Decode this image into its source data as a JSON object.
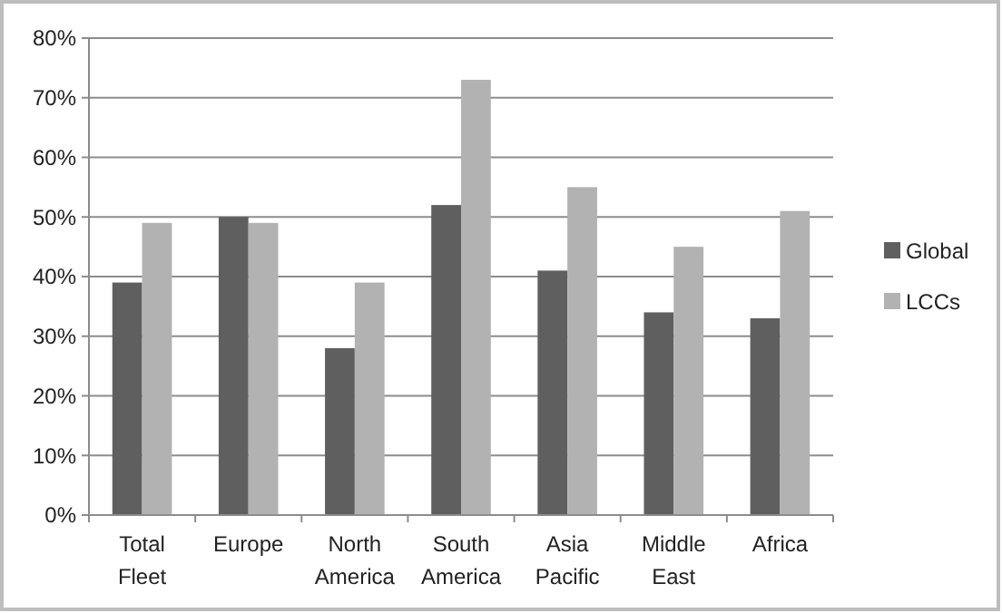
{
  "chart_data": {
    "type": "bar",
    "categories": [
      "Total Fleet",
      "Europe",
      "North America",
      "South America",
      "Asia Pacific",
      "Middle East",
      "Africa"
    ],
    "series": [
      {
        "name": "Global",
        "color": "#5f5f5f",
        "values": [
          39,
          50,
          28,
          52,
          41,
          34,
          33
        ]
      },
      {
        "name": "LCCs",
        "color": "#b2b2b2",
        "values": [
          49,
          49,
          39,
          73,
          55,
          45,
          51
        ]
      }
    ],
    "ylim": [
      0,
      80
    ],
    "yticks": [
      {
        "value": 0,
        "label": "0%"
      },
      {
        "value": 10,
        "label": "10%"
      },
      {
        "value": 20,
        "label": "20%"
      },
      {
        "value": 30,
        "label": "30%"
      },
      {
        "value": 40,
        "label": "40%"
      },
      {
        "value": 50,
        "label": "50%"
      },
      {
        "value": 60,
        "label": "60%"
      },
      {
        "value": 70,
        "label": "70%"
      },
      {
        "value": 80,
        "label": "80%"
      }
    ],
    "grid": "y",
    "legend": "right"
  }
}
